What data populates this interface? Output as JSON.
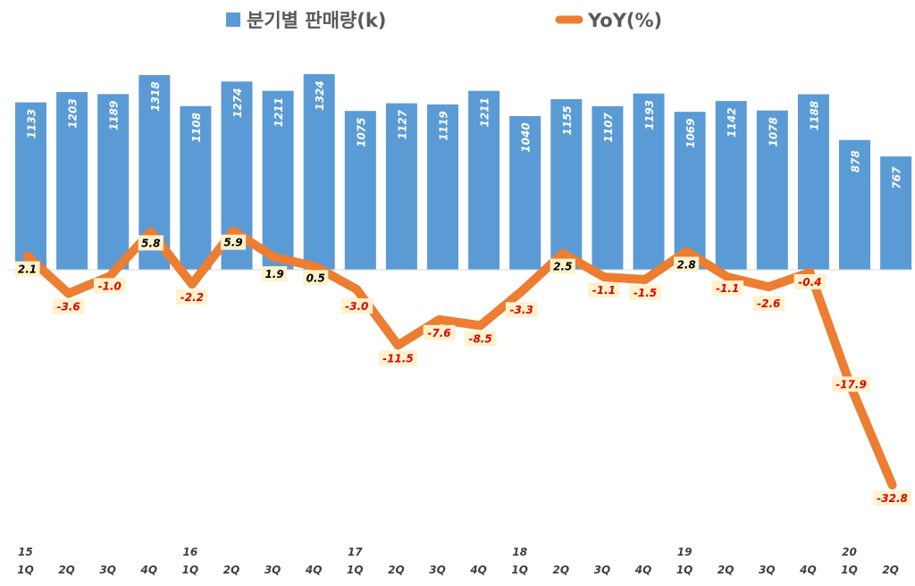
{
  "chart_data": {
    "type": "bar",
    "legend": [
      {
        "label": "분기별 판매량(k)",
        "color": "#5B9BD5",
        "kind": "bar"
      },
      {
        "label": "YoY(%)",
        "color": "#ED7D31",
        "kind": "line"
      }
    ],
    "legend_position": "top-center",
    "categories": [
      "1Q",
      "2Q",
      "3Q",
      "4Q",
      "1Q",
      "2Q",
      "3Q",
      "4Q",
      "1Q",
      "2Q",
      "3Q",
      "4Q",
      "1Q",
      "2Q",
      "3Q",
      "4Q",
      "1Q",
      "2Q",
      "3Q",
      "4Q",
      "1Q",
      "2Q"
    ],
    "year_labels": [
      "15",
      "",
      "",
      "",
      "16",
      "",
      "",
      "",
      "17",
      "",
      "",
      "",
      "18",
      "",
      "",
      "",
      "19",
      "",
      "",
      "",
      "20",
      ""
    ],
    "series": [
      {
        "name": "분기별 판매량(k)",
        "type": "bar",
        "color": "#5B9BD5",
        "values": [
          1133,
          1203,
          1189,
          1318,
          1108,
          1274,
          1211,
          1324,
          1075,
          1127,
          1119,
          1211,
          1040,
          1155,
          1107,
          1193,
          1069,
          1142,
          1078,
          1188,
          878,
          767
        ]
      },
      {
        "name": "YoY(%)",
        "type": "line",
        "color": "#ED7D31",
        "values": [
          2.1,
          -3.6,
          -1.0,
          5.8,
          -2.2,
          5.9,
          1.9,
          0.5,
          -3.0,
          -11.5,
          -7.6,
          -8.5,
          -3.3,
          2.5,
          -1.1,
          -1.5,
          2.8,
          -1.1,
          -2.6,
          -0.4,
          -17.9,
          -32.8
        ],
        "labels": [
          "2.1",
          "-3.6",
          "-1.0",
          "5.8",
          "-2.2",
          "5.9",
          "1.9",
          "0.5",
          "-3.0",
          "-11.5",
          "-7.6",
          "-8.5",
          "-3.3",
          "2.5",
          "-1.1",
          "-1.5",
          "2.8",
          "-1.1",
          "-2.6",
          "-0.4",
          "-17.9",
          "-32.8"
        ]
      }
    ],
    "bar_label_color": "#ffffff",
    "positive_label_color": "#000000",
    "negative_label_color": "#E00000",
    "label_box_color": "#FFF2CC",
    "bar_axis_range": [
      0,
      1400
    ],
    "yoy_axis_range": [
      -38,
      15
    ],
    "grid": false
  }
}
